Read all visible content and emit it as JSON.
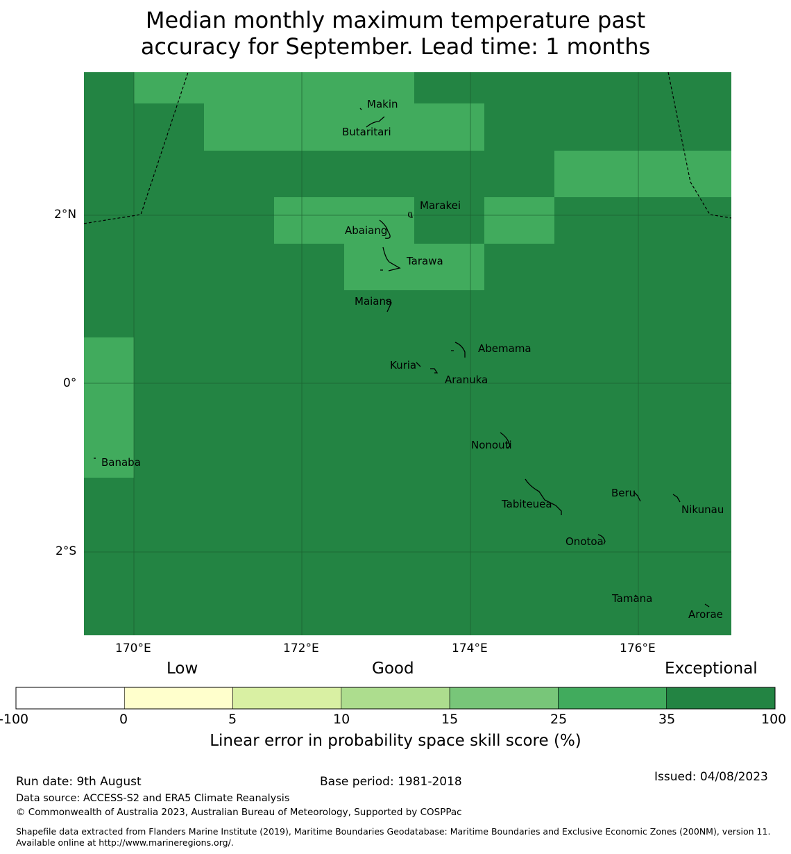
{
  "title": {
    "line1": "Median monthly maximum temperature past",
    "line2": "accuracy for September. Lead time: 1 months"
  },
  "map": {
    "lat_ticks": [
      "2°N",
      "0°",
      "2°S"
    ],
    "lon_ticks": [
      "170°E",
      "172°E",
      "174°E",
      "176°E"
    ],
    "islands": [
      "Makin",
      "Butaritari",
      "Marakei",
      "Abaiang",
      "Tarawa",
      "Maiana",
      "Abemama",
      "Kuria",
      "Aranuka",
      "Banaba",
      "Nonouti",
      "Tabiteuea",
      "Beru",
      "Nikunau",
      "Onotoa",
      "Tamana",
      "Arorae"
    ],
    "colors": {
      "score_35_100": "#238443",
      "score_25_35": "#41ab5d"
    }
  },
  "legend": {
    "categories": [
      "Low",
      "Good",
      "Exceptional"
    ],
    "bounds": [
      "-100",
      "0",
      "5",
      "10",
      "15",
      "25",
      "35",
      "100"
    ],
    "colors": [
      "#ffffff",
      "#ffffcc",
      "#d9f0a3",
      "#addd8e",
      "#78c679",
      "#41ab5d",
      "#238443"
    ],
    "title": "Linear error in probability space skill score (%)"
  },
  "footer": {
    "run_date": "Run date: 9th August",
    "base_period": "Base period: 1981-2018",
    "issued": "Issued: 04/08/2023",
    "data_source": "Data source: ACCESS-S2 and ERA5 Climate Reanalysis",
    "copyright": "© Commonwealth of Australia 2023, Australian Bureau of Meteorology, Supported by COSPPac",
    "shapefile": "Shapefile data extracted from Flanders Marine Institute (2019), Maritime Boundaries Geodatabase: Maritime Boundaries and Exclusive Economic Zones (200NM), version 11. Available online at http://www.marineregions.org/."
  }
}
